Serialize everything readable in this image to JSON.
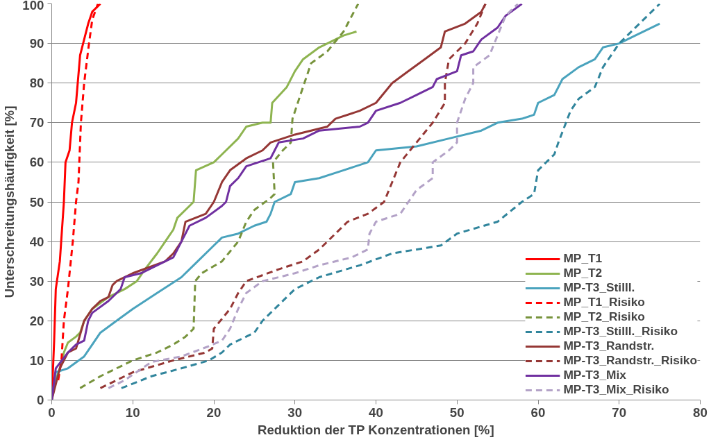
{
  "chart_data": {
    "type": "line",
    "xlabel": "Reduktion der TP Konzentrationen [%]",
    "ylabel": "Unterschreitungshäufigkeit [%]",
    "xlim": [
      0,
      80
    ],
    "xticks": [
      0,
      10,
      20,
      30,
      40,
      50,
      60,
      70,
      80
    ],
    "ylim": [
      0,
      100
    ],
    "yticks": [
      0,
      10,
      20,
      30,
      40,
      50,
      60,
      70,
      80,
      90,
      100
    ],
    "grid": "y",
    "legend": "bottom right",
    "marker": "none",
    "series": [
      {
        "name": "MP_T1",
        "color": "#ff0000",
        "line_style": "solid",
        "x": [
          0,
          0.3,
          0.5,
          1,
          1.5,
          1.7,
          2.2,
          2.5,
          3,
          3.5,
          4.5,
          5,
          6
        ],
        "values": [
          0,
          15,
          28,
          35,
          50,
          60,
          63,
          70,
          75,
          87,
          95,
          98,
          100
        ]
      },
      {
        "name": "MP_T2",
        "color": "#8eb450",
        "line_style": "solid",
        "x": [
          0,
          0.5,
          1,
          1.5,
          2,
          3,
          3.5,
          4,
          5,
          7,
          9,
          10.5,
          11.5,
          13,
          14,
          15,
          15.5,
          17,
          17.5,
          17.8,
          20,
          21,
          23,
          24,
          26,
          27,
          27.2,
          29,
          30,
          31,
          33,
          36,
          37.6
        ],
        "values": [
          0,
          5,
          8,
          12,
          14.5,
          16,
          17,
          20,
          23,
          26,
          28,
          30,
          33,
          37,
          40,
          43,
          46,
          49,
          50,
          58,
          60,
          62,
          66,
          69,
          70,
          70,
          75,
          79,
          83,
          86,
          89,
          92,
          93
        ]
      },
      {
        "name": "MP-T3_Stilll.",
        "color": "#4aa3bd",
        "line_style": "solid",
        "x": [
          0,
          0.5,
          2,
          4,
          5,
          6,
          8,
          10,
          13,
          16,
          18,
          19.5,
          21,
          23,
          25,
          26.5,
          27,
          27.5,
          29.5,
          30,
          33,
          36,
          39,
          40,
          45,
          49,
          53,
          55,
          58,
          59.5,
          60,
          62,
          63,
          65,
          67,
          68,
          70,
          72,
          75
        ],
        "values": [
          0,
          7,
          8,
          11,
          14,
          17,
          20,
          23,
          27,
          31,
          35,
          38,
          41,
          42,
          44,
          45,
          47,
          50,
          52,
          55,
          56,
          58,
          60,
          63,
          64,
          66,
          68,
          70,
          71,
          72,
          75,
          77,
          81,
          84,
          86,
          89,
          90,
          92,
          95
        ]
      },
      {
        "name": "MP_T1_Risiko",
        "color": "#ff0000",
        "line_style": "dashed",
        "x": [
          0.8,
          1.2,
          1.5,
          2,
          2.6,
          3,
          3.3,
          3.6,
          4,
          4.6,
          5,
          5.7
        ],
        "values": [
          5,
          10,
          20,
          28,
          40,
          50,
          55,
          70,
          80,
          90,
          96,
          100
        ]
      },
      {
        "name": "MP_T2_Risiko",
        "color": "#77933c",
        "line_style": "dashed",
        "x": [
          3.5,
          6,
          10,
          13,
          15,
          16.5,
          17.5,
          17.7,
          18.5,
          21,
          23,
          24,
          25,
          27,
          27.5,
          27.3,
          28.5,
          29.5,
          29.7,
          31,
          32,
          34,
          36,
          37.8
        ],
        "values": [
          3,
          6,
          10,
          12,
          14,
          16,
          18,
          30,
          32,
          35,
          40,
          45,
          48,
          51,
          52,
          60,
          63,
          65,
          71,
          79,
          85,
          88,
          93,
          100
        ]
      },
      {
        "name": "MP-T3_Stilll._Risiko",
        "color": "#31859c",
        "line_style": "dashed",
        "x": [
          8.6,
          12.3,
          16,
          19.4,
          21,
          22,
          25,
          26,
          27,
          30,
          33,
          38,
          42,
          48,
          50,
          55,
          58,
          59.5,
          60,
          62,
          62.5,
          64,
          65,
          67,
          68,
          70,
          75
        ],
        "values": [
          3,
          6,
          8,
          10,
          12,
          14,
          17,
          20,
          22,
          28,
          31,
          34,
          37,
          39,
          42,
          45,
          50,
          52,
          58,
          62,
          65,
          73,
          76,
          79,
          84,
          90,
          100
        ]
      },
      {
        "name": "MP-T3_Randstr.",
        "color": "#953735",
        "line_style": "solid",
        "x": [
          0,
          1,
          2,
          3,
          4,
          5,
          6,
          7,
          7.5,
          8,
          10,
          14,
          15,
          16,
          16.5,
          19,
          20,
          21,
          22,
          24,
          26,
          27,
          30,
          34,
          35,
          38,
          40,
          42,
          44,
          46,
          48,
          48.5,
          51,
          53,
          53.5
        ],
        "values": [
          0,
          8,
          12,
          13,
          20,
          23,
          25,
          26,
          29,
          30,
          32,
          35,
          37,
          40,
          45,
          47,
          50,
          55,
          58,
          61,
          63,
          65,
          67,
          69,
          71,
          73,
          75,
          80,
          83,
          86,
          89,
          93,
          95,
          98,
          100
        ]
      },
      {
        "name": "MP-T3_Randstr._Risiko",
        "color": "#953735",
        "line_style": "dashed",
        "x": [
          6,
          10,
          15,
          19,
          19.8,
          20,
          22,
          23,
          24,
          28,
          31,
          33,
          35,
          36.5,
          39,
          41,
          42,
          43,
          45,
          47,
          48.5,
          48.5,
          49,
          51,
          52.5,
          53.5
        ],
        "values": [
          3,
          7,
          10,
          12,
          13,
          18,
          23,
          27,
          30,
          33,
          35,
          38,
          42,
          45,
          47,
          50,
          55,
          60,
          65,
          70,
          75,
          80,
          86,
          90,
          95,
          100
        ]
      },
      {
        "name": "MP-T3_Mix",
        "color": "#7030a0",
        "line_style": "solid",
        "x": [
          0,
          0.5,
          2,
          3,
          4,
          4.5,
          5,
          7,
          8.5,
          9,
          11,
          13,
          15,
          16,
          17,
          19,
          21,
          21.5,
          22,
          23,
          24,
          27,
          27.5,
          28,
          31,
          33,
          38,
          39,
          40,
          43,
          45,
          47,
          47.5,
          50,
          50.5,
          52,
          53,
          55,
          56,
          58
        ],
        "values": [
          0,
          8,
          12,
          14,
          15,
          20,
          22,
          25,
          28,
          31,
          32,
          34,
          36,
          40,
          44,
          46,
          49,
          50,
          54,
          56,
          59,
          61,
          63,
          65,
          66,
          68,
          69,
          70,
          73,
          75,
          77,
          79,
          81,
          83,
          87,
          88,
          91,
          94,
          97,
          100
        ]
      },
      {
        "name": "MP-T3_Mix_Risiko",
        "color": "#b3a2c7",
        "line_style": "dashed",
        "x": [
          7,
          9,
          12.3,
          16,
          19.4,
          21,
          22,
          23,
          24,
          26,
          30,
          33,
          37,
          39,
          39.2,
          40,
          43,
          44,
          45,
          47,
          47,
          49,
          50,
          50,
          51,
          52,
          52,
          54,
          55,
          56,
          57.5
        ],
        "values": [
          3,
          5,
          9.6,
          11,
          13.6,
          15,
          18,
          23,
          27,
          30,
          32,
          34,
          36,
          38,
          42,
          45,
          47,
          50,
          53,
          56,
          60,
          63,
          65,
          70,
          76,
          80,
          84,
          87,
          92,
          97,
          100
        ]
      }
    ]
  }
}
